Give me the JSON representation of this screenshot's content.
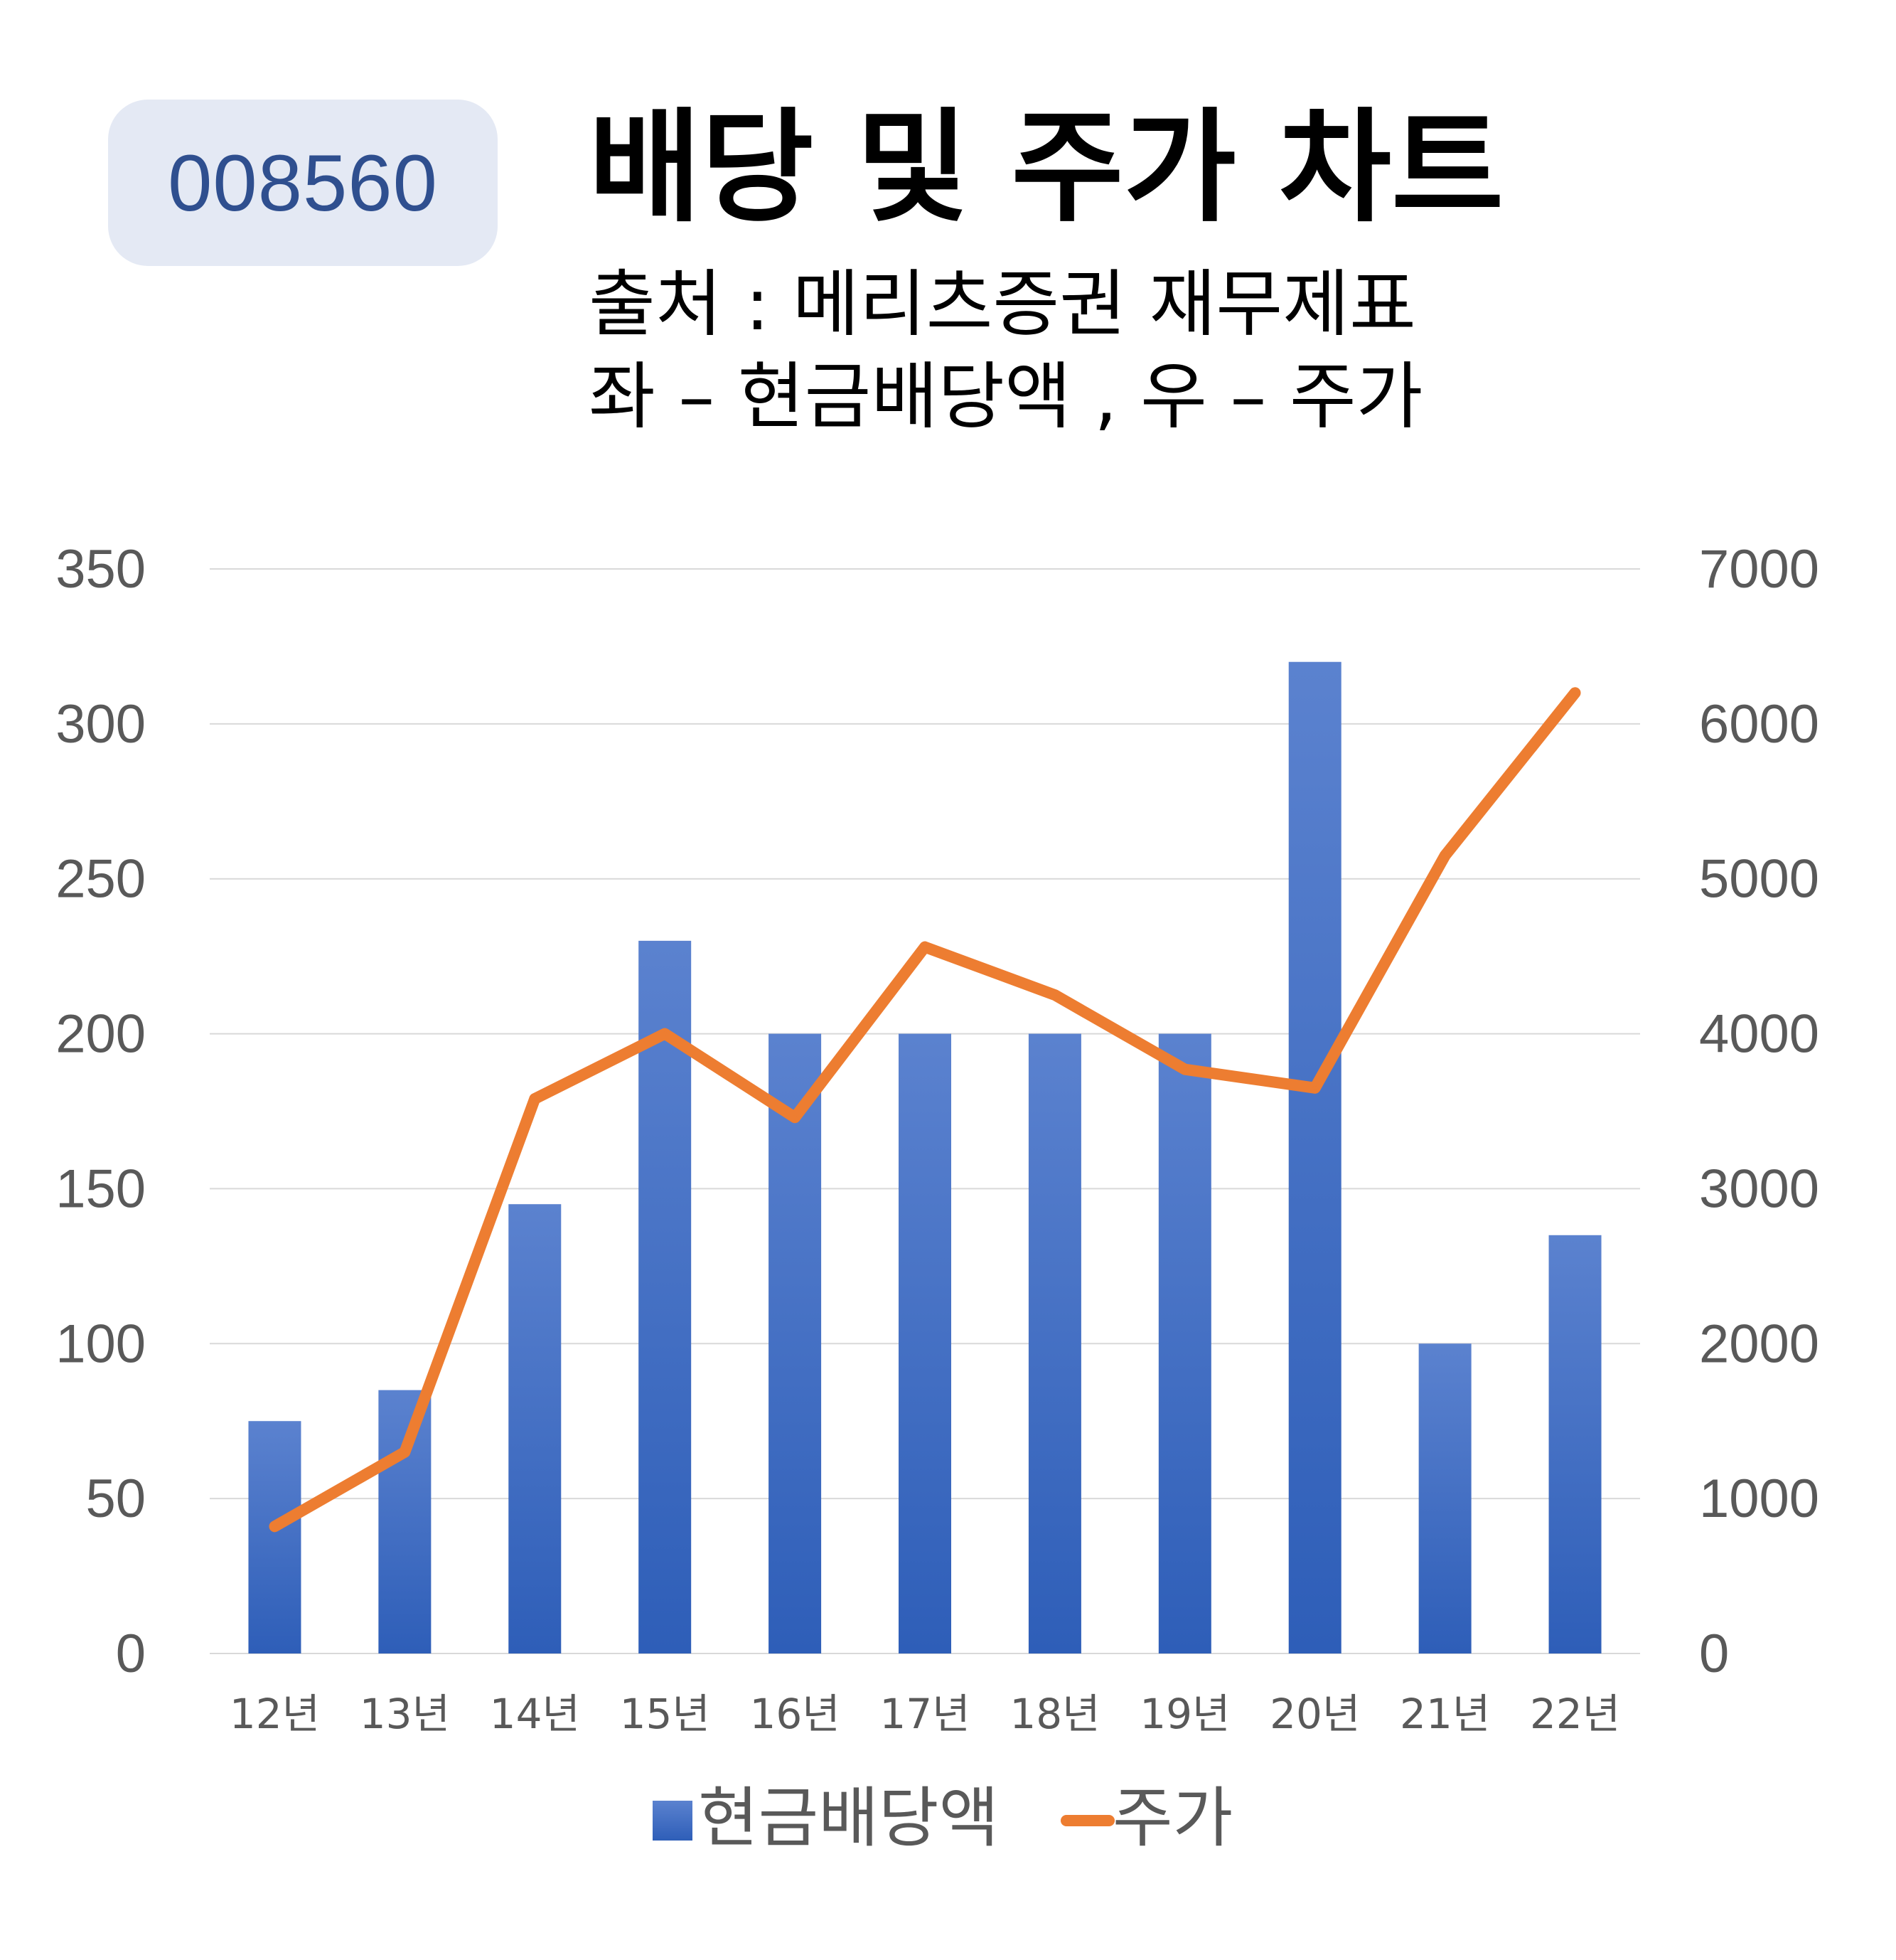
{
  "badge": {
    "code": "008560"
  },
  "header": {
    "title": "배당 및 주가 차트",
    "source": "출처 : 메리츠증권 재무제표",
    "axis_note": "좌 – 현금배당액 , 우 – 주가"
  },
  "colors": {
    "bar_top": "#5b82cf",
    "bar_bottom": "#2e5eb8",
    "line": "#ed7d31",
    "grid": "#d9d9d9",
    "tick": "#595959"
  },
  "chart_data": {
    "type": "bar",
    "title": "배당 및 주가 차트",
    "categories": [
      "12년",
      "13년",
      "14년",
      "15년",
      "16년",
      "17년",
      "18년",
      "19년",
      "20년",
      "21년",
      "22년"
    ],
    "series": [
      {
        "name": "현금배당액",
        "type": "bar",
        "axis": "left",
        "values": [
          75,
          85,
          145,
          230,
          200,
          200,
          200,
          200,
          320,
          100,
          135
        ]
      },
      {
        "name": "주가",
        "type": "line",
        "axis": "right",
        "values": [
          820,
          1300,
          3580,
          4000,
          3460,
          4560,
          4250,
          3770,
          3650,
          5150,
          6200
        ]
      }
    ],
    "y_left": {
      "ylim": [
        0,
        350
      ],
      "ticks": [
        "0",
        "50",
        "100",
        "150",
        "200",
        "250",
        "300",
        "350"
      ]
    },
    "y_right": {
      "ylim": [
        0,
        7000
      ],
      "ticks": [
        "0",
        "1000",
        "2000",
        "3000",
        "4000",
        "5000",
        "6000",
        "7000"
      ]
    },
    "grid": true,
    "legend": "bottom"
  }
}
